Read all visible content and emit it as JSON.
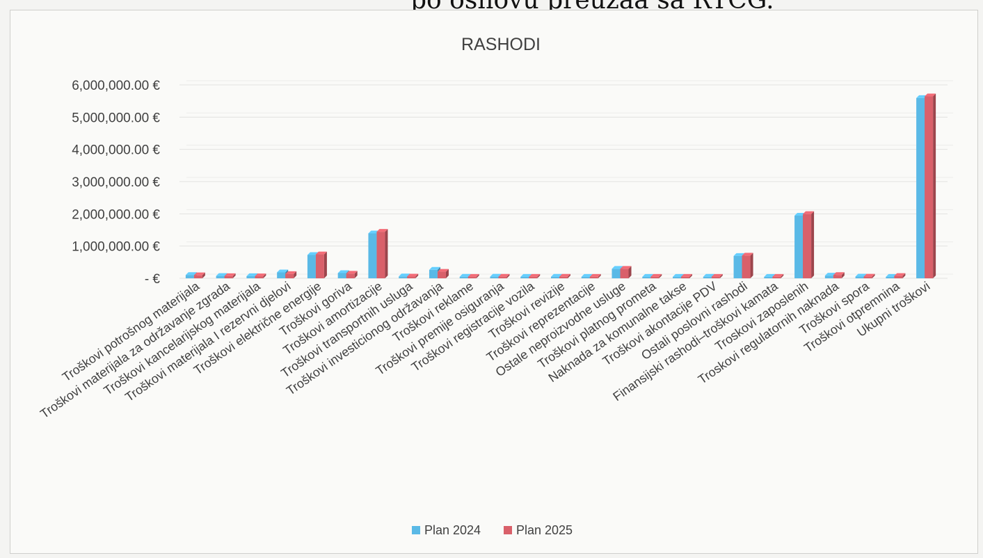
{
  "page_header": "po osnovu preuzaa sa RTCG.",
  "chart_data": {
    "type": "bar",
    "title": "RASHODI",
    "xlabel": "",
    "ylabel": "",
    "ylim": [
      0,
      6000000
    ],
    "yticks": [
      0,
      1000000,
      2000000,
      3000000,
      4000000,
      5000000,
      6000000
    ],
    "ytick_labels": [
      "-  €",
      "1,000,000.00 €",
      "2,000,000.00 €",
      "3,000,000.00 €",
      "4,000,000.00 €",
      "5,000,000.00 €",
      "6,000,000.00 €"
    ],
    "grid": true,
    "legend_position": "bottom",
    "categories": [
      "Troškovi potrošnog materijala",
      "Troškovi materijala za održavanje zgrada",
      "Troškovi kancelarijskog materijala",
      "Troškovi materijala I rezervni djelovi",
      "Troškovi električne energije",
      "Troškovi goriva",
      "Troškovi amortizacije",
      "Troškovi transportnih usluga",
      "Troškovi investicionog održavanja",
      "Troškovi reklame",
      "Troškovi premije osiguranja",
      "Troškovi registracije vozila",
      "Troškovi revizije",
      "Troškovi reprezentacije",
      "Ostale neproizvodne usluge",
      "Troškovi platnog prometa",
      "Naknada  za komunalne takse",
      "Troškovi akontacije PDV",
      "Ostali poslovni rashodi",
      "Finansijski rashodi–troškovi kamata",
      "Troskovi zaposlenih",
      "Troskovi regulatornih naknada",
      "Troškovi spora",
      "Troškovi otpremnina",
      "Ukupni troškovi"
    ],
    "series": [
      {
        "name": "Plan 2024",
        "color": "#5ab9e6",
        "values": [
          60000,
          30000,
          25000,
          140000,
          680000,
          120000,
          1350000,
          15000,
          220000,
          5000,
          8000,
          4000,
          6000,
          3000,
          250000,
          3000,
          3000,
          5000,
          650000,
          2000,
          1900000,
          40000,
          10000,
          3000,
          5550000
        ]
      },
      {
        "name": "Plan 2025",
        "color": "#d9606a",
        "values": [
          50000,
          25000,
          20000,
          90000,
          700000,
          100000,
          1400000,
          10000,
          160000,
          4000,
          6000,
          3000,
          5000,
          2000,
          250000,
          2000,
          2000,
          4000,
          660000,
          1500,
          1950000,
          60000,
          8000,
          30000,
          5600000
        ]
      }
    ]
  }
}
